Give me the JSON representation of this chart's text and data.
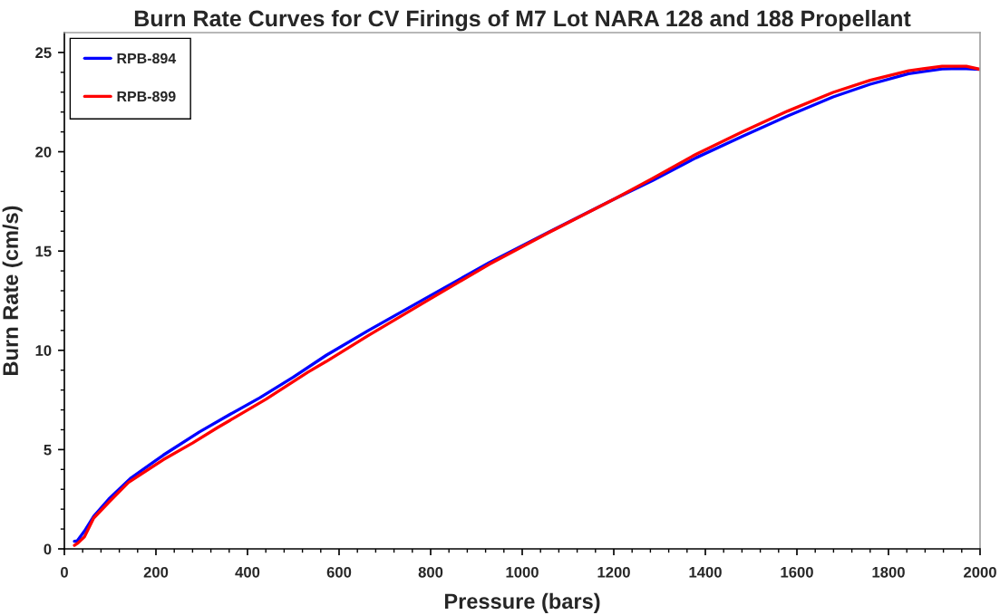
{
  "chart_data": {
    "type": "line",
    "title": "Burn Rate Curves for CV Firings of M7 Lot NARA 128 and 188 Propellant",
    "xlabel": "Pressure (bars)",
    "ylabel": "Burn Rate (cm/s)",
    "xlim": [
      0,
      2000
    ],
    "ylim": [
      0,
      26
    ],
    "xticks": [
      0,
      {
        "value": 40,
        "label": null
      },
      {
        "value": 80,
        "label": null
      },
      {
        "value": 120,
        "label": null
      },
      {
        "value": 160,
        "label": null
      },
      200,
      {
        "value": 240,
        "label": null
      },
      {
        "value": 280,
        "label": null
      },
      {
        "value": 320,
        "label": null
      },
      {
        "value": 360,
        "label": null
      },
      400,
      {
        "value": 440,
        "label": null
      },
      {
        "value": 480,
        "label": null
      },
      {
        "value": 520,
        "label": null
      },
      {
        "value": 560,
        "label": null
      },
      600,
      {
        "value": 640,
        "label": null
      },
      {
        "value": 680,
        "label": null
      },
      {
        "value": 720,
        "label": null
      },
      {
        "value": 760,
        "label": null
      },
      800,
      {
        "value": 840,
        "label": null
      },
      {
        "value": 880,
        "label": null
      },
      {
        "value": 920,
        "label": null
      },
      {
        "value": 960,
        "label": null
      },
      1000,
      {
        "value": 1040,
        "label": null
      },
      {
        "value": 1080,
        "label": null
      },
      {
        "value": 1120,
        "label": null
      },
      {
        "value": 1160,
        "label": null
      },
      1200,
      {
        "value": 1240,
        "label": null
      },
      {
        "value": 1280,
        "label": null
      },
      {
        "value": 1320,
        "label": null
      },
      {
        "value": 1360,
        "label": null
      },
      1400,
      {
        "value": 1440,
        "label": null
      },
      {
        "value": 1480,
        "label": null
      },
      {
        "value": 1520,
        "label": null
      },
      {
        "value": 1560,
        "label": null
      },
      1600,
      {
        "value": 1640,
        "label": null
      },
      {
        "value": 1680,
        "label": null
      },
      {
        "value": 1720,
        "label": null
      },
      {
        "value": 1760,
        "label": null
      },
      1800,
      {
        "value": 1840,
        "label": null
      },
      {
        "value": 1880,
        "label": null
      },
      {
        "value": 1920,
        "label": null
      },
      {
        "value": 1960,
        "label": null
      },
      2000
    ],
    "yticks": [
      0,
      {
        "value": 1,
        "label": null
      },
      {
        "value": 2,
        "label": null
      },
      {
        "value": 3,
        "label": null
      },
      {
        "value": 4,
        "label": null
      },
      5,
      {
        "value": 6,
        "label": null
      },
      {
        "value": 7,
        "label": null
      },
      {
        "value": 8,
        "label": null
      },
      {
        "value": 9,
        "label": null
      },
      10,
      {
        "value": 11,
        "label": null
      },
      {
        "value": 12,
        "label": null
      },
      {
        "value": 13,
        "label": null
      },
      {
        "value": 14,
        "label": null
      },
      15,
      {
        "value": 16,
        "label": null
      },
      {
        "value": 17,
        "label": null
      },
      {
        "value": 18,
        "label": null
      },
      {
        "value": 19,
        "label": null
      },
      20,
      {
        "value": 21,
        "label": null
      },
      {
        "value": 22,
        "label": null
      },
      {
        "value": 23,
        "label": null
      },
      {
        "value": 24,
        "label": null
      },
      25
    ],
    "grid": false,
    "legend": "top left",
    "marker": "none",
    "line_style": "solid",
    "series": [
      {
        "name": "RPB-894",
        "color": "#0000ff",
        "x": [
          22,
          28,
          44,
          64,
          97,
          146,
          216,
          295,
          360,
          427,
          500,
          572,
          664,
          796,
          928,
          1060,
          1205,
          1284,
          1380,
          1481,
          1580,
          1679,
          1760,
          1844,
          1917,
          1960,
          2000
        ],
        "values": [
          0.38,
          0.4,
          0.9,
          1.64,
          2.51,
          3.58,
          4.72,
          5.89,
          6.75,
          7.61,
          8.65,
          9.75,
          11.0,
          12.71,
          14.42,
          15.98,
          17.66,
          18.54,
          19.7,
          20.78,
          21.8,
          22.76,
          23.4,
          23.93,
          24.17,
          24.2,
          24.15
        ]
      },
      {
        "name": "RPB-899",
        "color": "#ff0000",
        "x": [
          22,
          30,
          44,
          64,
          97,
          140,
          216,
          280,
          334,
          440,
          532,
          572,
          664,
          796,
          928,
          1060,
          1205,
          1284,
          1380,
          1481,
          1580,
          1679,
          1760,
          1844,
          1917,
          1970,
          2000
        ],
        "values": [
          0.18,
          0.3,
          0.61,
          1.55,
          2.35,
          3.35,
          4.49,
          5.33,
          6.1,
          7.53,
          8.9,
          9.44,
          10.75,
          12.55,
          14.33,
          15.95,
          17.66,
          18.65,
          19.88,
          21.0,
          22.05,
          22.99,
          23.6,
          24.08,
          24.31,
          24.31,
          24.15
        ]
      }
    ]
  }
}
